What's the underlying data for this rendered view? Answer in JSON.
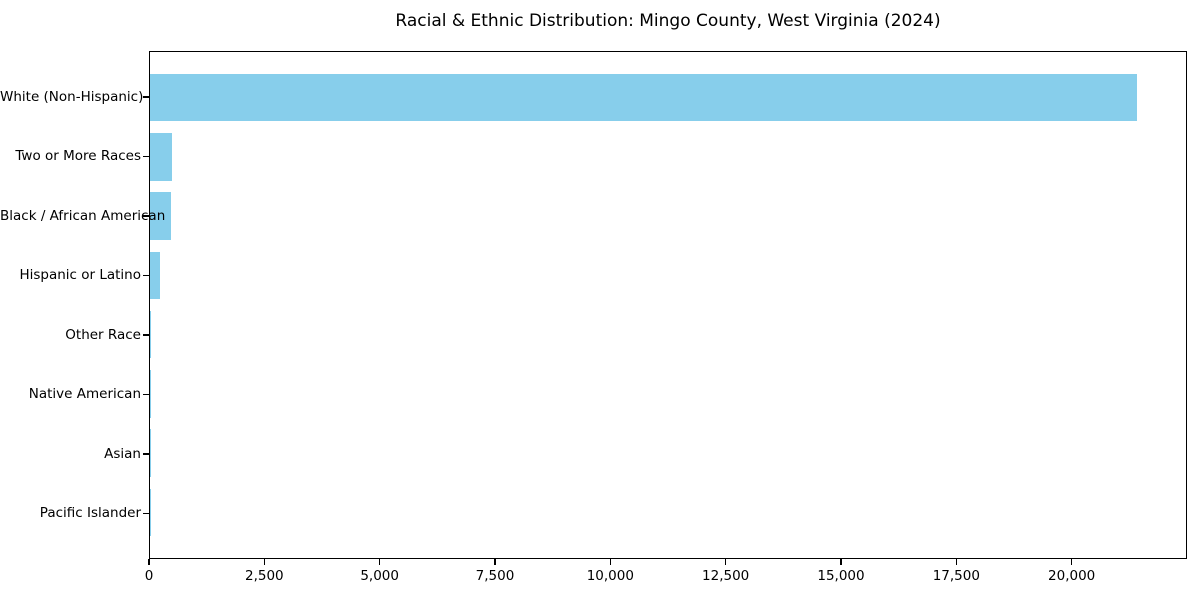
{
  "chart_data": {
    "type": "bar",
    "orientation": "horizontal",
    "title": "Racial & Ethnic Distribution: Mingo County, West Virginia (2024)",
    "categories": [
      "White (Non-Hispanic)",
      "Two or More Races",
      "Black / African American",
      "Hispanic or Latino",
      "Other Race",
      "Native American",
      "Asian",
      "Pacific Islander"
    ],
    "values": [
      21430,
      480,
      455,
      215,
      30,
      12,
      6,
      2
    ],
    "xlabel": "",
    "ylabel": "",
    "xlim": [
      0,
      22500
    ],
    "xticks": [
      {
        "value": 0,
        "label": "0"
      },
      {
        "value": 2500,
        "label": "2,500"
      },
      {
        "value": 5000,
        "label": "5,000"
      },
      {
        "value": 7500,
        "label": "7,500"
      },
      {
        "value": 10000,
        "label": "10,000"
      },
      {
        "value": 12500,
        "label": "12,500"
      },
      {
        "value": 15000,
        "label": "15,000"
      },
      {
        "value": 17500,
        "label": "17,500"
      },
      {
        "value": 20000,
        "label": "20,000"
      }
    ],
    "bar_color": "#87CEEB",
    "axis_color": "#000000",
    "text_color": "#000000",
    "background_color": "#ffffff",
    "grid": false,
    "legend_position": "none"
  }
}
